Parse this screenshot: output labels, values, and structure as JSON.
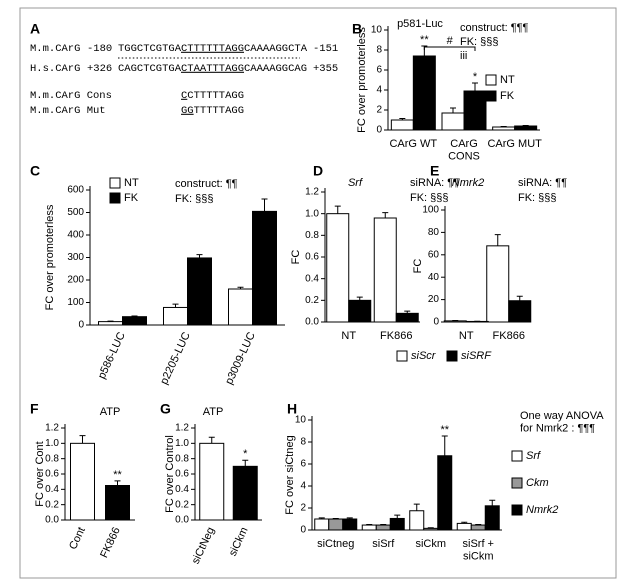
{
  "sequence_panel": {
    "panel": "A",
    "rows": [
      {
        "name": "M.m.CArG",
        "start": "-180",
        "pre": "TGGCTCGTGA",
        "motif": "CTTTTTTAGG",
        "post": "CAAAAGGCTA",
        "end": "-151"
      },
      {
        "name": "H.s.CArG",
        "start": "+326",
        "pre": "CAGCTCGTGA",
        "motif": "CTAATTTAGG",
        "post": "CAAAAGGCAG",
        "end": "+355"
      }
    ],
    "variants": [
      {
        "name": "M.m.CArG Cons",
        "changed": "C",
        "rest": "CTTTTTAGG"
      },
      {
        "name": "M.m.CArG Mut",
        "changed": "GG",
        "rest": "TTTTTAGG"
      }
    ]
  },
  "chart_data": [
    {
      "type": "bar",
      "panel": "B",
      "title": "p581-Luc",
      "annotations": [
        "construct: ¶¶¶",
        "FK: §§§",
        "iii"
      ],
      "ylabel": "FC over promoterless",
      "categories": [
        "CArG WT",
        "CArG\nCONS",
        "CArG MUT"
      ],
      "ylim": [
        0,
        10
      ],
      "yticks": [
        0,
        2,
        4,
        6,
        8,
        10
      ],
      "bracket_label": "#",
      "series": [
        {
          "name": "NT",
          "color": "#ffffff",
          "values": [
            1.0,
            1.7,
            0.3
          ],
          "errors": [
            0.15,
            0.5,
            0.05
          ],
          "significance": [
            null,
            null,
            null
          ]
        },
        {
          "name": "FK",
          "color": "#000000",
          "values": [
            7.4,
            3.9,
            0.4
          ],
          "errors": [
            1.0,
            0.8,
            0.05
          ],
          "significance": [
            "**",
            "*",
            null
          ]
        }
      ]
    },
    {
      "type": "bar",
      "panel": "C",
      "annotations": [
        "construct: ¶¶",
        "FK: §§§"
      ],
      "ylabel": "FC over promoterless",
      "categories": [
        "p586-LUC",
        "p2205-LUC",
        "p3009-LUC"
      ],
      "ylim": [
        0,
        600
      ],
      "yticks": [
        0,
        100,
        200,
        300,
        400,
        500,
        600
      ],
      "series": [
        {
          "name": "NT",
          "color": "#ffffff",
          "values": [
            15,
            78,
            160
          ],
          "errors": [
            2,
            15,
            8
          ]
        },
        {
          "name": "FK",
          "color": "#000000",
          "values": [
            37,
            298,
            505
          ],
          "errors": [
            3,
            15,
            55
          ]
        }
      ]
    },
    {
      "type": "bar",
      "panel": "D",
      "title": "Srf",
      "annotations": [
        "siRNA: ¶¶",
        "FK: §§§"
      ],
      "ylabel": "FC",
      "categories": [
        "NT",
        "FK866"
      ],
      "ylim": [
        0,
        1.2
      ],
      "yticks": [
        {
          "value": 0,
          "label": "0.0"
        },
        0.2,
        0.4,
        0.6,
        0.8,
        {
          "value": 1,
          "label": "1.0"
        },
        1.2
      ],
      "series": [
        {
          "name": "siScr",
          "color": "#ffffff",
          "values": [
            1.0,
            0.96
          ],
          "errors": [
            0.07,
            0.05
          ]
        },
        {
          "name": "siSRF",
          "color": "#000000",
          "values": [
            0.2,
            0.08
          ],
          "errors": [
            0.03,
            0.02
          ]
        }
      ]
    },
    {
      "type": "bar",
      "panel": "E",
      "title": "Nmrk2",
      "annotations": [
        "siRNA: ¶¶",
        "FK: §§§"
      ],
      "ylabel": "FC",
      "categories": [
        "NT",
        "FK866"
      ],
      "ylim": [
        0,
        100
      ],
      "yticks": [
        0,
        20,
        40,
        60,
        80,
        100
      ],
      "series": [
        {
          "color": "#ffffff",
          "values": [
            1,
            68
          ],
          "errors": [
            0.3,
            10
          ]
        },
        {
          "color": "#000000",
          "values": [
            0.5,
            19
          ],
          "errors": [
            0.2,
            4
          ]
        }
      ]
    },
    {
      "type": "bar",
      "panel": "F",
      "title": "ATP",
      "ylabel": "FC over Cont",
      "categories": [
        "Cont",
        "FK866"
      ],
      "ylim": [
        0,
        1.2
      ],
      "yticks": [
        {
          "value": 0,
          "label": "0.0"
        },
        0.2,
        0.4,
        0.6,
        0.8,
        {
          "value": 1,
          "label": "1.0"
        },
        1.2
      ],
      "series": [
        {
          "colors": [
            "#ffffff",
            "#000000"
          ],
          "values": [
            1.0,
            0.45
          ],
          "errors": [
            0.1,
            0.06
          ],
          "significance": [
            null,
            "**"
          ]
        }
      ]
    },
    {
      "type": "bar",
      "panel": "G",
      "title": "ATP",
      "ylabel": "FC over Control",
      "categories": [
        "siCtNeg",
        "siCkm"
      ],
      "ylim": [
        0,
        1.2
      ],
      "yticks": [
        {
          "value": 0,
          "label": "0.0"
        },
        0.2,
        0.4,
        0.6,
        0.8,
        {
          "value": 1,
          "label": "1.0"
        },
        1.2
      ],
      "series": [
        {
          "colors": [
            "#ffffff",
            "#000000"
          ],
          "values": [
            1.0,
            0.7
          ],
          "errors": [
            0.08,
            0.08
          ],
          "significance": [
            null,
            "*"
          ]
        }
      ]
    },
    {
      "type": "bar",
      "panel": "H",
      "annotations": [
        "One way ANOVA\nfor Nmrk2  : ¶¶¶"
      ],
      "ylabel": "FC over siCtneg",
      "categories": [
        "siCtneg",
        "siSrf",
        "siCkm",
        "siSrf +\nsiCkm"
      ],
      "ylim": [
        0,
        10
      ],
      "yticks": [
        0,
        2,
        4,
        6,
        8,
        10
      ],
      "series": [
        {
          "name": "Srf",
          "color": "#ffffff",
          "values": [
            1.0,
            0.45,
            1.75,
            0.6
          ],
          "errors": [
            0.1,
            0.05,
            0.6,
            0.1
          ]
        },
        {
          "name": "Ckm",
          "color": "#999999",
          "values": [
            1.0,
            0.45,
            0.15,
            0.45
          ],
          "errors": [
            0.05,
            0.05,
            0.05,
            0.05
          ]
        },
        {
          "name": "Nmrk2",
          "color": "#000000",
          "values": [
            1.0,
            1.05,
            6.75,
            2.2
          ],
          "errors": [
            0.1,
            0.3,
            1.8,
            0.5
          ],
          "significance": [
            null,
            null,
            "**",
            null
          ]
        }
      ]
    }
  ]
}
